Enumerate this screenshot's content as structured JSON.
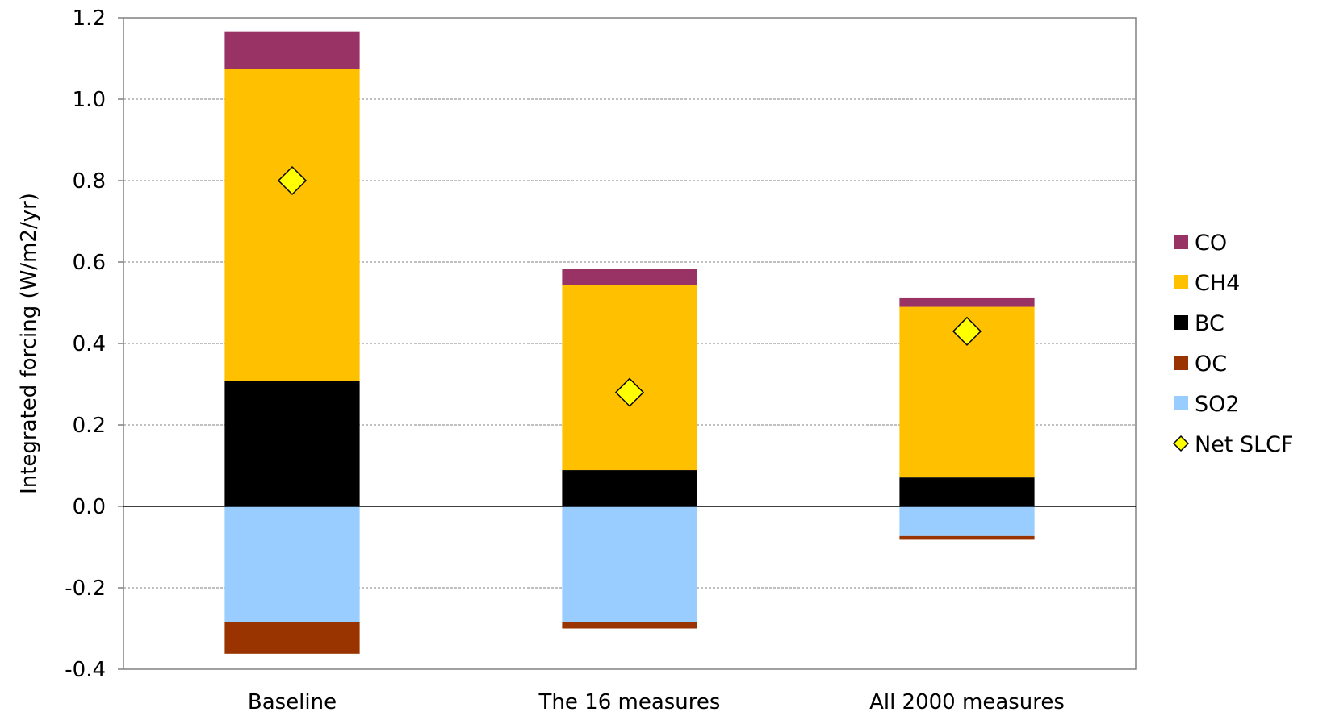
{
  "chart_data": {
    "type": "bar",
    "stacked": true,
    "title": "",
    "xlabel": "",
    "ylabel": "Integrated forcing (W/m2/yr)",
    "ylim": [
      -0.4,
      1.2
    ],
    "yticks": [
      "-0.4",
      "-0.2",
      "0.0",
      "0.2",
      "0.4",
      "0.6",
      "0.8",
      "1.0",
      "1.2"
    ],
    "ytick_values": [
      -0.4,
      -0.2,
      0.0,
      0.2,
      0.4,
      0.6,
      0.8,
      1.0,
      1.2
    ],
    "grid": true,
    "legend_position": "right",
    "categories": [
      "Baseline",
      "The 16 measures",
      "All 2000 measures"
    ],
    "series": [
      {
        "name": "SO2",
        "color": "#99ccff",
        "values": [
          -0.285,
          -0.285,
          -0.073
        ]
      },
      {
        "name": "OC",
        "color": "#993300",
        "values": [
          -0.077,
          -0.015,
          -0.009
        ]
      },
      {
        "name": "BC",
        "color": "#000000",
        "values": [
          0.308,
          0.089,
          0.071
        ]
      },
      {
        "name": "CH4",
        "color": "#ffc000",
        "values": [
          0.767,
          0.455,
          0.419
        ]
      },
      {
        "name": "CO",
        "color": "#993366",
        "values": [
          0.09,
          0.039,
          0.023
        ]
      }
    ],
    "net": {
      "name": "Net SLCF",
      "color": "#ffff00",
      "values": [
        0.8,
        0.28,
        0.43
      ]
    },
    "legend_order": [
      "CO",
      "CH4",
      "BC",
      "OC",
      "SO2",
      "Net SLCF"
    ]
  }
}
